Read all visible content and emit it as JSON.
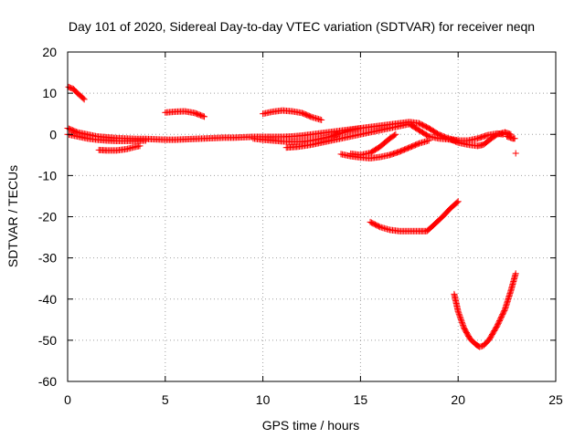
{
  "chart_data": {
    "type": "scatter",
    "title": "Day 101 of 2020, Sidereal Day-to-day VTEC variation (SDTVAR) for receiver neqn",
    "xlabel": "GPS time / hours",
    "ylabel": "SDTVAR / TECUs",
    "xlim": [
      0,
      25
    ],
    "ylim": [
      -60,
      20
    ],
    "x_ticks": [
      0,
      5,
      10,
      15,
      20,
      25
    ],
    "y_ticks": [
      -60,
      -50,
      -40,
      -30,
      -20,
      -10,
      0,
      10,
      20
    ],
    "x_tick_labels": [
      "0",
      "5",
      "10",
      "15",
      "20",
      "25"
    ],
    "y_tick_labels": [
      "-60",
      "-50",
      "-40",
      "-30",
      "-20",
      "-10",
      "0",
      "10",
      "20"
    ],
    "grid": true,
    "marker": "+",
    "color": "#ff0000",
    "series": [
      {
        "points": [
          [
            0.05,
            11.5
          ],
          [
            0.3,
            11.0
          ],
          [
            0.5,
            10.0
          ],
          [
            0.7,
            9.2
          ],
          [
            0.85,
            8.5
          ]
        ]
      },
      {
        "points": [
          [
            0.0,
            1.5
          ],
          [
            0.5,
            0.5
          ],
          [
            1.0,
            0.0
          ],
          [
            1.5,
            -0.5
          ],
          [
            2.0,
            -0.7
          ],
          [
            2.5,
            -0.9
          ],
          [
            3.0,
            -1.0
          ],
          [
            3.5,
            -1.1
          ],
          [
            4.0,
            -1.1
          ],
          [
            4.5,
            -1.2
          ],
          [
            5.0,
            -1.3
          ],
          [
            5.5,
            -1.3
          ],
          [
            6.0,
            -1.2
          ],
          [
            6.5,
            -1.1
          ],
          [
            7.0,
            -1.0
          ],
          [
            7.5,
            -0.9
          ],
          [
            8.0,
            -0.8
          ],
          [
            8.5,
            -0.8
          ],
          [
            9.0,
            -0.7
          ],
          [
            9.5,
            -0.6
          ],
          [
            10.0,
            -0.6
          ],
          [
            10.5,
            -0.6
          ],
          [
            11.0,
            -0.6
          ],
          [
            11.5,
            -0.5
          ],
          [
            12.0,
            -0.3
          ],
          [
            12.5,
            0.0
          ],
          [
            13.0,
            0.3
          ],
          [
            13.5,
            0.6
          ],
          [
            14.0,
            0.9
          ],
          [
            14.5,
            1.2
          ],
          [
            15.0,
            1.5
          ],
          [
            15.5,
            1.8
          ],
          [
            16.0,
            2.1
          ],
          [
            16.5,
            2.4
          ],
          [
            17.0,
            2.7
          ],
          [
            17.5,
            3.0
          ],
          [
            18.0,
            2.7
          ],
          [
            18.5,
            1.5
          ],
          [
            19.0,
            0.0
          ],
          [
            19.5,
            -1.0
          ],
          [
            20.0,
            -1.5
          ],
          [
            20.5,
            -1.5
          ],
          [
            21.0,
            -1.0
          ],
          [
            21.5,
            -0.2
          ],
          [
            22.0,
            0.2
          ],
          [
            22.3,
            0.0
          ]
        ]
      },
      {
        "points": [
          [
            0.0,
            0.0
          ],
          [
            0.5,
            -0.5
          ],
          [
            1.0,
            -1.0
          ],
          [
            1.5,
            -1.3
          ],
          [
            2.0,
            -1.5
          ],
          [
            2.5,
            -1.6
          ],
          [
            3.0,
            -1.6
          ],
          [
            3.5,
            -1.6
          ],
          [
            4.0,
            -1.5
          ]
        ]
      },
      {
        "points": [
          [
            1.6,
            -3.8
          ],
          [
            2.0,
            -3.9
          ],
          [
            2.5,
            -3.9
          ],
          [
            3.0,
            -3.6
          ],
          [
            3.5,
            -3.0
          ],
          [
            3.7,
            -2.8
          ]
        ]
      },
      {
        "points": [
          [
            5.0,
            5.3
          ],
          [
            5.5,
            5.5
          ],
          [
            6.0,
            5.6
          ],
          [
            6.5,
            5.2
          ],
          [
            7.0,
            4.3
          ]
        ]
      },
      {
        "points": [
          [
            9.5,
            -1.0
          ],
          [
            10.0,
            -1.3
          ],
          [
            10.5,
            -1.5
          ],
          [
            11.0,
            -1.7
          ],
          [
            11.5,
            -1.8
          ],
          [
            12.0,
            -1.8
          ],
          [
            12.5,
            -1.5
          ],
          [
            13.0,
            -1.0
          ],
          [
            13.5,
            -0.5
          ],
          [
            14.0,
            0.3
          ],
          [
            14.5,
            1.0
          ],
          [
            15.0,
            1.5
          ]
        ]
      },
      {
        "points": [
          [
            10.0,
            5.0
          ],
          [
            10.5,
            5.5
          ],
          [
            11.0,
            5.8
          ],
          [
            11.5,
            5.6
          ],
          [
            12.0,
            5.2
          ],
          [
            12.5,
            4.2
          ],
          [
            13.0,
            3.5
          ]
        ]
      },
      {
        "points": [
          [
            11.2,
            -3.2
          ],
          [
            11.8,
            -3.0
          ],
          [
            12.5,
            -2.5
          ],
          [
            13.0,
            -2.0
          ],
          [
            13.5,
            -1.5
          ],
          [
            14.0,
            -1.0
          ],
          [
            14.5,
            -0.5
          ],
          [
            15.0,
            0.0
          ],
          [
            15.5,
            0.5
          ],
          [
            16.0,
            1.0
          ],
          [
            16.5,
            1.5
          ],
          [
            17.0,
            2.0
          ],
          [
            17.5,
            2.5
          ],
          [
            18.0,
            1.0
          ],
          [
            18.5,
            -0.5
          ],
          [
            19.0,
            -1.0
          ],
          [
            19.5,
            -1.2
          ],
          [
            20.0,
            -1.5
          ]
        ]
      },
      {
        "points": [
          [
            14.0,
            -4.8
          ],
          [
            14.5,
            -5.3
          ],
          [
            15.0,
            -5.6
          ],
          [
            15.5,
            -5.8
          ],
          [
            16.0,
            -5.5
          ],
          [
            16.5,
            -5.0
          ],
          [
            17.0,
            -4.2
          ],
          [
            17.5,
            -3.2
          ],
          [
            18.0,
            -2.2
          ],
          [
            18.5,
            -1.5
          ]
        ]
      },
      {
        "points": [
          [
            14.5,
            -4.7
          ],
          [
            15.0,
            -5.0
          ],
          [
            15.5,
            -4.5
          ],
          [
            16.0,
            -3.0
          ],
          [
            16.5,
            -1.0
          ],
          [
            16.8,
            0.0
          ]
        ]
      },
      {
        "points": [
          [
            15.5,
            -21.3
          ],
          [
            16.0,
            -22.5
          ],
          [
            16.5,
            -23.2
          ],
          [
            17.0,
            -23.5
          ],
          [
            17.5,
            -23.5
          ],
          [
            18.0,
            -23.5
          ],
          [
            18.4,
            -23.5
          ],
          [
            18.8,
            -21.8
          ],
          [
            19.2,
            -20.0
          ],
          [
            19.6,
            -18.0
          ],
          [
            20.0,
            -16.3
          ]
        ]
      },
      {
        "points": [
          [
            19.8,
            -38.8
          ],
          [
            20.0,
            -43.0
          ],
          [
            20.3,
            -47.0
          ],
          [
            20.6,
            -49.6
          ],
          [
            20.9,
            -51.0
          ],
          [
            21.1,
            -51.6
          ],
          [
            21.3,
            -51.3
          ],
          [
            21.6,
            -49.8
          ],
          [
            22.0,
            -46.5
          ],
          [
            22.4,
            -42.5
          ],
          [
            22.7,
            -38.0
          ],
          [
            22.95,
            -33.8
          ]
        ]
      },
      {
        "points": [
          [
            19.5,
            -1.0
          ],
          [
            20.0,
            -2.0
          ],
          [
            20.5,
            -2.5
          ],
          [
            21.0,
            -2.8
          ],
          [
            21.3,
            -2.5
          ],
          [
            21.7,
            -1.0
          ],
          [
            22.0,
            0.0
          ],
          [
            22.4,
            0.5
          ],
          [
            22.7,
            0.0
          ]
        ]
      },
      {
        "points": [
          [
            22.5,
            -0.5
          ],
          [
            22.8,
            -1.0
          ],
          [
            22.9,
            -1.0
          ]
        ]
      },
      {
        "points": [
          [
            22.95,
            -4.6
          ]
        ]
      }
    ]
  }
}
